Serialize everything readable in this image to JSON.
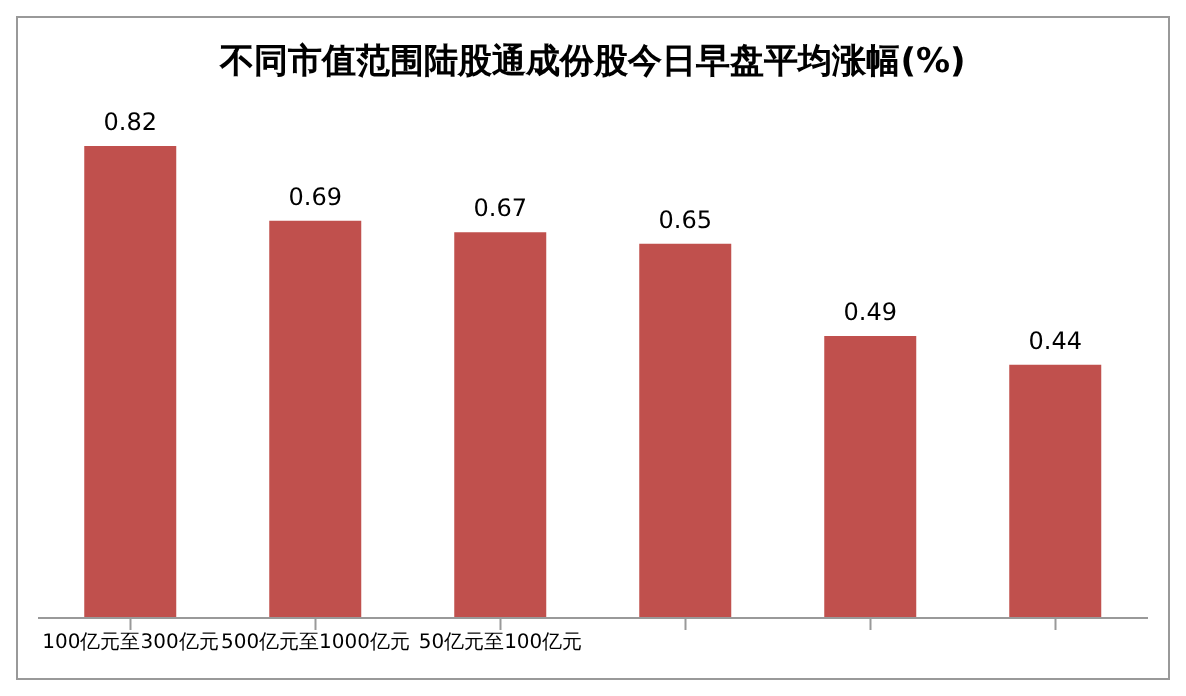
{
  "chart_data": {
    "type": "bar",
    "title": "不同市值范围陆股通成份股今日早盘平均涨幅(%)",
    "categories": [
      "100亿元至300亿元",
      "500亿元至1000亿元",
      "50亿元至100亿元",
      null,
      null,
      null
    ],
    "values": [
      0.82,
      0.69,
      0.67,
      0.65,
      0.49,
      0.44
    ],
    "color": "#c0504d",
    "data_labels": true,
    "tick_labels": "x"
  }
}
